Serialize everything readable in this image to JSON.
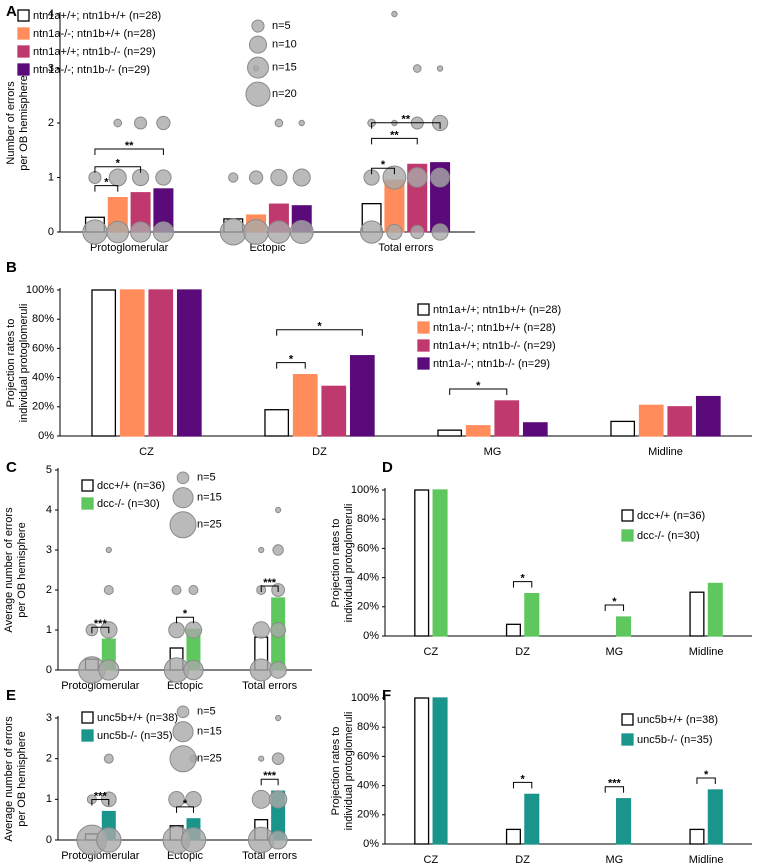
{
  "chart_data": [
    {
      "type": "bar",
      "panel": "A",
      "ylabel": [
        "Number of errors",
        "per OB hemisphere"
      ],
      "categories": [
        "Protoglomerular",
        "Ectopic",
        "Total errors"
      ],
      "ylim": [
        0,
        4
      ],
      "yticks": [
        0,
        1,
        2,
        3,
        4
      ],
      "series": [
        {
          "name": "ntn1a+/+; ntn1b+/+ (n=28)",
          "color": "#ffffff",
          "values": [
            0.27,
            0.24,
            0.52
          ],
          "bubbles": [
            [
              [
                0,
                20
              ],
              [
                1,
                5
              ]
            ],
            [
              [
                0,
                23
              ],
              [
                1,
                3
              ]
            ],
            [
              [
                0,
                17
              ],
              [
                1,
                8
              ],
              [
                2,
                2
              ]
            ]
          ]
        },
        {
          "name": "ntn1a-/-; ntn1b+/+ (n=28)",
          "color": "#ff8c5a",
          "values": [
            0.63,
            0.31,
            0.95
          ],
          "bubbles": [
            [
              [
                0,
                16
              ],
              [
                1,
                10
              ],
              [
                2,
                2
              ]
            ],
            [
              [
                0,
                21
              ],
              [
                1,
                6
              ],
              [
                3,
                1
              ]
            ],
            [
              [
                0,
                8
              ],
              [
                1,
                18
              ],
              [
                2,
                1
              ],
              [
                4,
                1
              ]
            ]
          ]
        },
        {
          "name": "ntn1a+/+; ntn1b-/- (n=29)",
          "color": "#c0396e",
          "values": [
            0.72,
            0.51,
            1.24
          ],
          "bubbles": [
            [
              [
                0,
                14
              ],
              [
                1,
                9
              ],
              [
                2,
                5
              ]
            ],
            [
              [
                0,
                17
              ],
              [
                1,
                9
              ],
              [
                2,
                2
              ]
            ],
            [
              [
                0,
                6
              ],
              [
                1,
                13
              ],
              [
                2,
                5
              ],
              [
                3,
                2
              ]
            ]
          ]
        },
        {
          "name": "ntn1a-/-; ntn1b-/- (n=29)",
          "color": "#5b0a7a",
          "values": [
            0.79,
            0.48,
            1.27
          ],
          "bubbles": [
            [
              [
                0,
                14
              ],
              [
                1,
                8
              ],
              [
                2,
                6
              ]
            ],
            [
              [
                0,
                18
              ],
              [
                1,
                10
              ],
              [
                2,
                1
              ]
            ],
            [
              [
                0,
                9
              ],
              [
                1,
                12
              ],
              [
                2,
                8
              ],
              [
                3,
                1
              ]
            ]
          ]
        }
      ],
      "bubble_legend": [
        {
          "value": 5,
          "label": "n=5"
        },
        {
          "value": 10,
          "label": "n=10"
        },
        {
          "value": 15,
          "label": "n=15"
        },
        {
          "value": 20,
          "label": "n=20"
        }
      ],
      "significance": [
        {
          "category": 0,
          "from": 0,
          "to": 1,
          "label": "*"
        },
        {
          "category": 0,
          "from": 0,
          "to": 2,
          "label": "*"
        },
        {
          "category": 0,
          "from": 0,
          "to": 3,
          "label": "**"
        },
        {
          "category": 2,
          "from": 0,
          "to": 1,
          "label": "*"
        },
        {
          "category": 2,
          "from": 0,
          "to": 2,
          "label": "**"
        },
        {
          "category": 2,
          "from": 0,
          "to": 3,
          "label": "**"
        }
      ]
    },
    {
      "type": "bar",
      "panel": "B",
      "ylabel": [
        "Projection rates to",
        "individual protoglomeruli"
      ],
      "categories": [
        "CZ",
        "DZ",
        "MG",
        "Midline"
      ],
      "ylim": [
        0,
        100
      ],
      "yticks": [
        {
          "value": 0,
          "label": "0%"
        },
        {
          "value": 20,
          "label": "20%"
        },
        {
          "value": 40,
          "label": "40%"
        },
        {
          "value": 60,
          "label": "60%"
        },
        {
          "value": 80,
          "label": "80%"
        },
        {
          "value": 100,
          "label": "100%"
        }
      ],
      "series": [
        {
          "name": "ntn1a+/+; ntn1b+/+ (n=28)",
          "color": "#ffffff",
          "values": [
            100,
            18,
            4,
            10
          ]
        },
        {
          "name": "ntn1a-/-; ntn1b+/+ (n=28)",
          "color": "#ff8c5a",
          "values": [
            100,
            42,
            7,
            21
          ]
        },
        {
          "name": "ntn1a+/+; ntn1b-/- (n=29)",
          "color": "#c0396e",
          "values": [
            100,
            34,
            24,
            20
          ]
        },
        {
          "name": "ntn1a-/-; ntn1b-/- (n=29)",
          "color": "#5b0a7a",
          "values": [
            100,
            55,
            9,
            27
          ]
        }
      ],
      "significance": [
        {
          "category": 1,
          "from": 0,
          "to": 1,
          "label": "*"
        },
        {
          "category": 1,
          "from": 0,
          "to": 3,
          "label": "*"
        },
        {
          "category": 2,
          "from": 0,
          "to": 2,
          "label": "*"
        }
      ]
    },
    {
      "type": "bar",
      "panel": "C",
      "ylabel": [
        "Average number of errors",
        "per OB hemisphere"
      ],
      "categories": [
        "Protoglomerular",
        "Ectopic",
        "Total errors"
      ],
      "ylim": [
        0,
        5
      ],
      "yticks": [
        0,
        1,
        2,
        3,
        4,
        5
      ],
      "series": [
        {
          "name": "dcc+/+ (n=36)",
          "color": "#ffffff",
          "values": [
            0.27,
            0.55,
            0.82
          ],
          "bubbles": [
            [
              [
                0,
                26
              ],
              [
                1,
                5
              ]
            ],
            [
              [
                0,
                22
              ],
              [
                1,
                9
              ],
              [
                2,
                3
              ]
            ],
            [
              [
                0,
                18
              ],
              [
                1,
                10
              ],
              [
                2,
                3
              ],
              [
                3,
                1
              ]
            ]
          ]
        },
        {
          "name": "dcc-/- (n=30)",
          "color": "#5ec75e",
          "values": [
            0.77,
            1.02,
            1.8
          ],
          "bubbles": [
            [
              [
                0,
                15
              ],
              [
                1,
                10
              ],
              [
                2,
                3
              ],
              [
                3,
                1
              ]
            ],
            [
              [
                0,
                14
              ],
              [
                1,
                10
              ],
              [
                2,
                3
              ]
            ],
            [
              [
                0,
                10
              ],
              [
                1,
                8
              ],
              [
                2,
                6
              ],
              [
                3,
                4
              ],
              [
                4,
                1
              ]
            ]
          ]
        }
      ],
      "bubble_legend": [
        {
          "value": 5,
          "label": "n=5"
        },
        {
          "value": 15,
          "label": "n=15"
        },
        {
          "value": 25,
          "label": "n=25"
        }
      ],
      "significance": [
        {
          "category": 0,
          "from": 0,
          "to": 1,
          "label": "***"
        },
        {
          "category": 1,
          "from": 0,
          "to": 1,
          "label": "*"
        },
        {
          "category": 2,
          "from": 0,
          "to": 1,
          "label": "***"
        }
      ]
    },
    {
      "type": "bar",
      "panel": "D",
      "ylabel": [
        "Projection rates to",
        "individual protoglomeruli"
      ],
      "categories": [
        "CZ",
        "DZ",
        "MG",
        "Midline"
      ],
      "ylim": [
        0,
        100
      ],
      "yticks": [
        {
          "value": 0,
          "label": "0%"
        },
        {
          "value": 20,
          "label": "20%"
        },
        {
          "value": 40,
          "label": "40%"
        },
        {
          "value": 60,
          "label": "60%"
        },
        {
          "value": 80,
          "label": "80%"
        },
        {
          "value": 100,
          "label": "100%"
        }
      ],
      "series": [
        {
          "name": "dcc+/+ (n=36)",
          "color": "#ffffff",
          "values": [
            100,
            8,
            0,
            30
          ]
        },
        {
          "name": "dcc-/- (n=30)",
          "color": "#5ec75e",
          "values": [
            100,
            29,
            13,
            36
          ]
        }
      ],
      "significance": [
        {
          "category": 1,
          "from": 0,
          "to": 1,
          "label": "*"
        },
        {
          "category": 2,
          "from": 0,
          "to": 1,
          "label": "*"
        }
      ]
    },
    {
      "type": "bar",
      "panel": "E",
      "ylabel": [
        "Average number of errors",
        "per OB hemisphere"
      ],
      "categories": [
        "Protoglomerular",
        "Ectopic",
        "Total errors"
      ],
      "ylim": [
        0,
        3
      ],
      "yticks": [
        0,
        1,
        2,
        3
      ],
      "series": [
        {
          "name": "unc5b+/+ (n=38)",
          "color": "#ffffff",
          "values": [
            0.15,
            0.35,
            0.5
          ],
          "bubbles": [
            [
              [
                0,
                33
              ],
              [
                1,
                3
              ]
            ],
            [
              [
                0,
                27
              ],
              [
                1,
                9
              ]
            ],
            [
              [
                0,
                24
              ],
              [
                1,
                12
              ],
              [
                2,
                1
              ]
            ]
          ]
        },
        {
          "name": "unc5b-/- (n=35)",
          "color": "#1a958c",
          "values": [
            0.7,
            0.52,
            1.2
          ],
          "bubbles": [
            [
              [
                0,
                22
              ],
              [
                1,
                8
              ],
              [
                2,
                3
              ]
            ],
            [
              [
                0,
                22
              ],
              [
                1,
                9
              ],
              [
                2,
                2
              ]
            ],
            [
              [
                0,
                12
              ],
              [
                1,
                11
              ],
              [
                2,
                5
              ],
              [
                3,
                1
              ]
            ]
          ]
        }
      ],
      "bubble_legend": [
        {
          "value": 5,
          "label": "n=5"
        },
        {
          "value": 15,
          "label": "n=15"
        },
        {
          "value": 25,
          "label": "n=25"
        }
      ],
      "significance": [
        {
          "category": 0,
          "from": 0,
          "to": 1,
          "label": "***"
        },
        {
          "category": 1,
          "from": 0,
          "to": 1,
          "label": "*"
        },
        {
          "category": 2,
          "from": 0,
          "to": 1,
          "label": "***"
        }
      ]
    },
    {
      "type": "bar",
      "panel": "F",
      "ylabel": [
        "Projection rates to",
        "individual protoglomeruli"
      ],
      "categories": [
        "CZ",
        "DZ",
        "MG",
        "Midline"
      ],
      "ylim": [
        0,
        100
      ],
      "yticks": [
        {
          "value": 0,
          "label": "0%"
        },
        {
          "value": 20,
          "label": "20%"
        },
        {
          "value": 40,
          "label": "40%"
        },
        {
          "value": 60,
          "label": "60%"
        },
        {
          "value": 80,
          "label": "80%"
        },
        {
          "value": 100,
          "label": "100%"
        }
      ],
      "series": [
        {
          "name": "unc5b+/+ (n=38)",
          "color": "#ffffff",
          "values": [
            100,
            10,
            0,
            10
          ]
        },
        {
          "name": "unc5b-/- (n=35)",
          "color": "#1a958c",
          "values": [
            100,
            34,
            31,
            37
          ]
        }
      ],
      "significance": [
        {
          "category": 1,
          "from": 0,
          "to": 1,
          "label": "*"
        },
        {
          "category": 2,
          "from": 0,
          "to": 1,
          "label": "***"
        },
        {
          "category": 3,
          "from": 0,
          "to": 1,
          "label": "*"
        }
      ]
    }
  ]
}
